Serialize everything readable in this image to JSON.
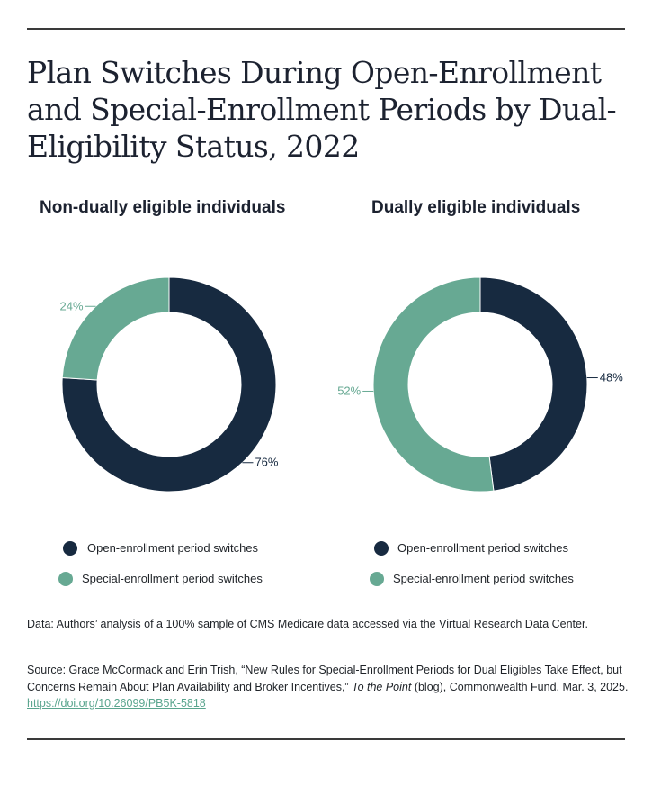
{
  "title": "Plan Switches During Open-Enrollment and Special-Enrollment Periods by Dual-Eligibility Status, 2022",
  "chart_data": [
    {
      "type": "pie",
      "title": "Non-dually eligible individuals",
      "categories": [
        "Open-enrollment period switches",
        "Special-enrollment period switches"
      ],
      "values": [
        76,
        24
      ],
      "value_labels": [
        "76%",
        "24%"
      ],
      "colors": [
        "#172a40",
        "#67a993"
      ]
    },
    {
      "type": "pie",
      "title": "Dually eligible individuals",
      "categories": [
        "Open-enrollment period switches",
        "Special-enrollment period switches"
      ],
      "values": [
        48,
        52
      ],
      "value_labels": [
        "48%",
        "52%"
      ],
      "colors": [
        "#172a40",
        "#67a993"
      ]
    }
  ],
  "legend": {
    "open_label": "Open-enrollment period switches",
    "special_label": "Special-enrollment period switches"
  },
  "data_note": "Data: Authors’ analysis of a 100% sample of CMS Medicare data accessed via the Virtual Research Data Center.",
  "source": {
    "prefix": "Source: Grace McCormack and Erin Trish, “New Rules for Special-Enrollment Periods for Dual Eligibles Take Effect, but Concerns Remain About Plan Availability and Broker Incentives,” ",
    "publication": "To the Point",
    "suffix": " (blog), Commonwealth Fund, Mar. 3, 2025. ",
    "link": "https://doi.org/10.26099/PB5K-5818"
  }
}
